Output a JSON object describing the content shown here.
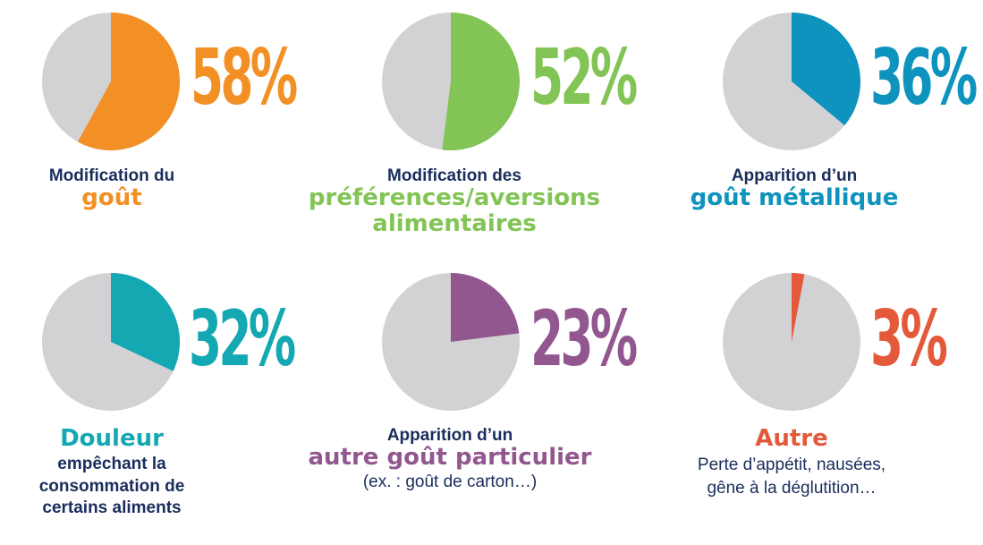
{
  "chart_data": [
    {
      "type": "pie",
      "value": 58,
      "label": "58%",
      "color": "#f39025",
      "caption": {
        "top": "Modification du",
        "highlight": [
          "goût"
        ]
      }
    },
    {
      "type": "pie",
      "value": 52,
      "label": "52%",
      "color": "#82c455",
      "caption": {
        "top": "Modification des",
        "highlight": [
          "préférences/aversions",
          "alimentaires"
        ]
      }
    },
    {
      "type": "pie",
      "value": 36,
      "label": "36%",
      "color": "#0d93bd",
      "caption": {
        "top": "Apparition d’un",
        "highlight": [
          "goût métallique"
        ]
      }
    },
    {
      "type": "pie",
      "value": 32,
      "label": "32%",
      "color": "#14a8b2",
      "caption": {
        "highlight": [
          "Douleur"
        ],
        "bottom": [
          "empêchant la",
          "consommation de",
          "certains aliments"
        ]
      }
    },
    {
      "type": "pie",
      "value": 23,
      "label": "23%",
      "color": "#93578f",
      "caption": {
        "top": "Apparition d’un",
        "highlight": [
          "autre goût particulier"
        ],
        "note": [
          "(ex. : goût de carton…)"
        ]
      }
    },
    {
      "type": "pie",
      "value": 3,
      "label": "3%",
      "color": "#e3593a",
      "caption": {
        "highlight": [
          "Autre"
        ],
        "note": [
          "Perte d’appétit, nausées,",
          "gêne à la déglutition…"
        ]
      }
    }
  ],
  "colors": {
    "remainder": "#d2d2d4",
    "text": "#1a2d5c"
  }
}
